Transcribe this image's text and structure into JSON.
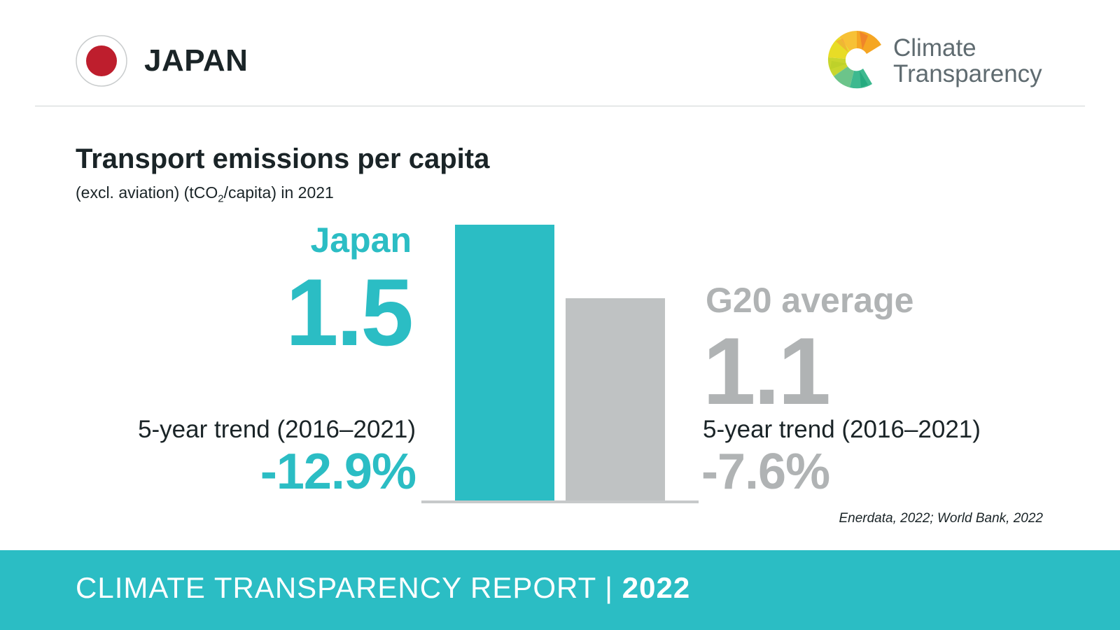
{
  "header": {
    "country": "JAPAN",
    "brand_line1": "Climate",
    "brand_line2": "Transparency",
    "flag_icon": "japan-flag-icon",
    "logo_icon": "climate-transparency-logo-icon"
  },
  "title": "Transport emissions per capita",
  "subtitle_pre": "(excl. aviation) (tCO",
  "subtitle_sub": "2",
  "subtitle_post": "/capita) in 2021",
  "japan": {
    "label": "Japan",
    "value": "1.5",
    "trend_label": "5-year trend (2016–2021)",
    "trend_value": "-12.9%"
  },
  "g20": {
    "label": "G20 average",
    "value": "1.1",
    "trend_label": "5-year trend (2016–2021)",
    "trend_value": "-7.6%"
  },
  "source": "Enerdata, 2022; World Bank, 2022",
  "footer": {
    "text": "CLIMATE TRANSPARENCY REPORT |",
    "year": "2022"
  },
  "colors": {
    "accent": "#2bbdc4",
    "g20_bar": "#bfc2c3",
    "g20_text": "#b0b3b4",
    "axis": "#c7c9ca",
    "flag_red": "#be1e2d",
    "text_dark": "#1a2427"
  },
  "chart_data": {
    "type": "bar",
    "categories": [
      "Japan",
      "G20 average"
    ],
    "values": [
      1.5,
      1.1
    ],
    "title": "Transport emissions per capita",
    "ylabel": "",
    "xlabel": "",
    "ylim": [
      0,
      1.5
    ],
    "grid": false
  }
}
